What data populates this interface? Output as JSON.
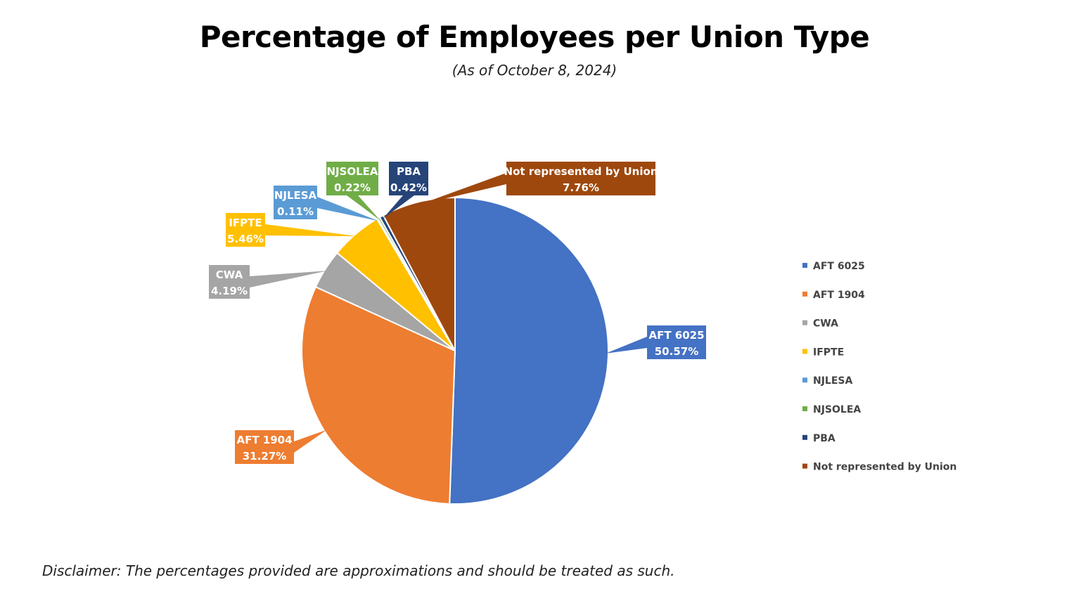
{
  "title": "Percentage of Employees per Union Type",
  "subtitle": "(As of October 8, 2024)",
  "disclaimer": "Disclaimer: The percentages provided are approximations and should be treated as such.",
  "chart_data": {
    "type": "pie",
    "title": "Percentage of Employees per Union Type",
    "subtitle": "(As of October 8, 2024)",
    "legend_position": "right",
    "categories": [
      "AFT 6025",
      "AFT 1904",
      "CWA",
      "IFPTE",
      "NJLESA",
      "NJSOLEA",
      "PBA",
      "Not represented by Union"
    ],
    "values": [
      50.57,
      31.27,
      4.19,
      5.46,
      0.11,
      0.22,
      0.42,
      7.76
    ],
    "value_labels": [
      "50.57%",
      "31.27%",
      "4.19%",
      "5.46%",
      "0.11%",
      "0.22%",
      "0.42%",
      "7.76%"
    ],
    "colors": [
      "#4472C4",
      "#ED7D31",
      "#A5A5A5",
      "#FFC000",
      "#5B9BD5",
      "#70AD47",
      "#264478",
      "#9E480E"
    ]
  }
}
